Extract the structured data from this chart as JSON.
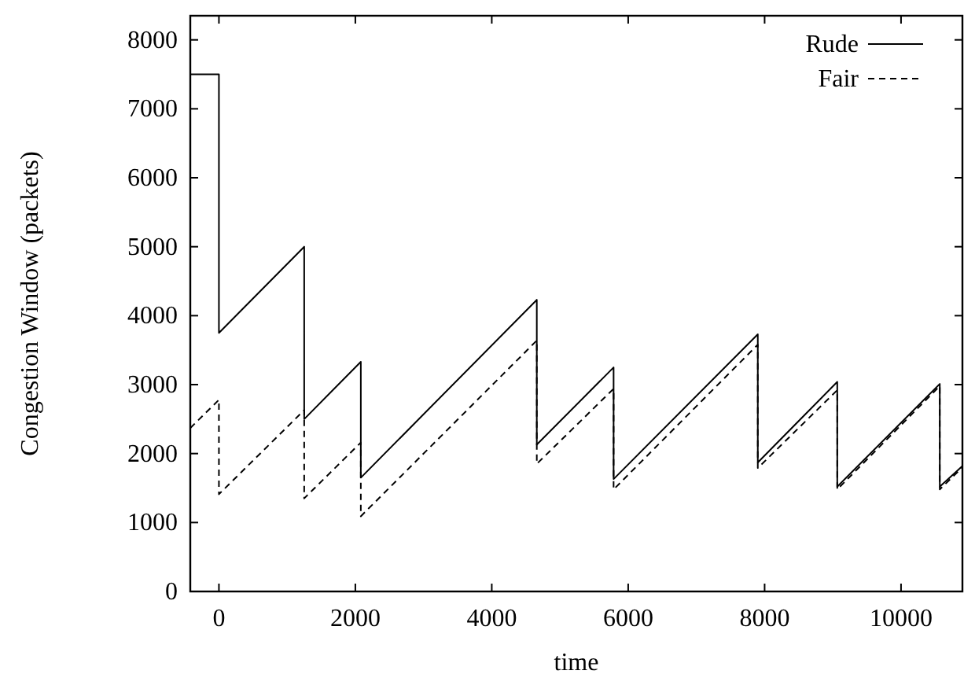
{
  "chart_data": {
    "type": "line",
    "xlabel": "time",
    "ylabel": "Congestion Window (packets)",
    "xlim": [
      -420,
      10900
    ],
    "ylim": [
      0,
      8350
    ],
    "xticks": [
      0,
      2000,
      4000,
      6000,
      8000,
      10000
    ],
    "yticks": [
      0,
      1000,
      2000,
      3000,
      4000,
      5000,
      6000,
      7000,
      8000
    ],
    "legend": "top right",
    "grid": false,
    "marker": "none",
    "series": [
      {
        "name": "Rude",
        "color": "#000000",
        "line_style": "solid",
        "x": [
          -420,
          0,
          0,
          1250,
          1250,
          2080,
          2080,
          4660,
          4660,
          5786,
          5786,
          7900,
          7900,
          9065,
          9065,
          10568,
          10568,
          10900
        ],
        "values": [
          7500,
          7500,
          3750,
          5000,
          2500,
          3330,
          1650,
          4230,
          2130,
          3250,
          1630,
          3730,
          1870,
          3040,
          1520,
          3010,
          1520,
          1820
        ]
      },
      {
        "name": "Fair",
        "color": "#000000",
        "line_style": "dashed",
        "x": [
          -420,
          0,
          0,
          1250,
          1250,
          2080,
          2080,
          4660,
          4660,
          5786,
          5786,
          7900,
          7900,
          9065,
          9065,
          10568,
          10568,
          10900
        ],
        "values": [
          2370,
          2780,
          1410,
          2630,
          1350,
          2160,
          1090,
          3640,
          1850,
          2940,
          1480,
          3580,
          1790,
          2920,
          1480,
          2980,
          1480,
          1800
        ]
      }
    ]
  }
}
